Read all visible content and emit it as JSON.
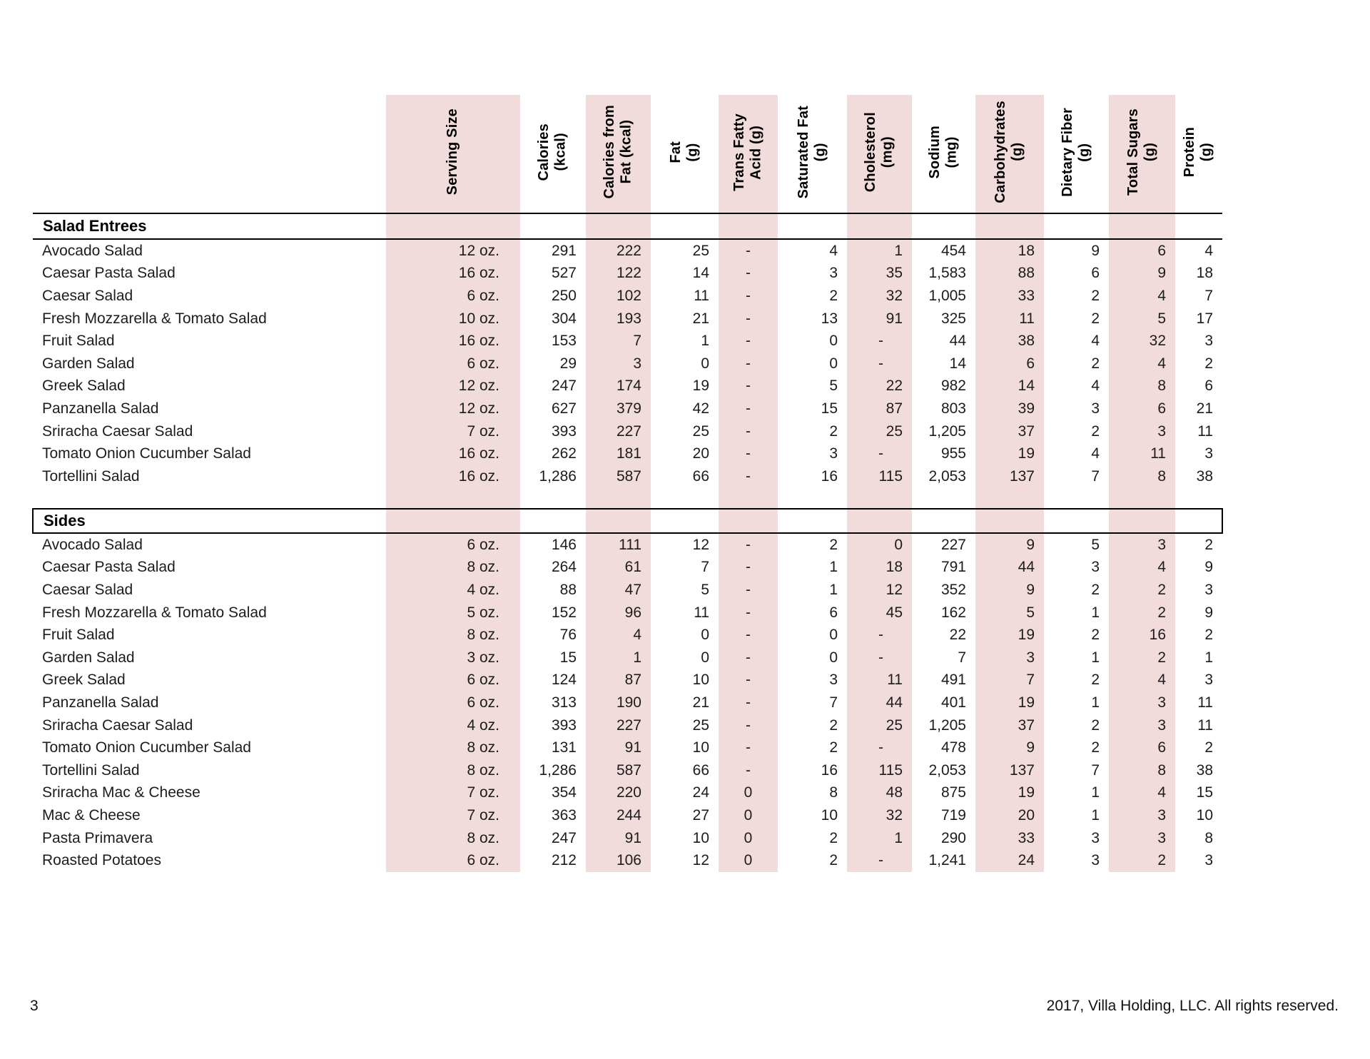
{
  "footer": {
    "page_number": "3",
    "copyright": "2017, Villa Holding, LLC. All rights reserved."
  },
  "colors": {
    "band_pink": "#f2dcdb",
    "rule_black": "#000000",
    "text": "#1c1c1c"
  },
  "table": {
    "columns": [
      {
        "key": "item",
        "label": "",
        "pink": false
      },
      {
        "key": "serving_size",
        "label": "Serving Size",
        "pink": true
      },
      {
        "key": "calories",
        "label": "Calories\n(kcal)",
        "pink": false
      },
      {
        "key": "calories_fat",
        "label": "Calories from\nFat (kcal)",
        "pink": true
      },
      {
        "key": "fat",
        "label": "Fat\n(g)",
        "pink": false
      },
      {
        "key": "trans_fat",
        "label": "Trans Fatty\nAcid (g)",
        "pink": true
      },
      {
        "key": "saturated_fat",
        "label": "Saturated Fat\n(g)",
        "pink": false
      },
      {
        "key": "cholesterol",
        "label": "Cholesterol\n(mg)",
        "pink": true
      },
      {
        "key": "sodium",
        "label": "Sodium\n(mg)",
        "pink": false
      },
      {
        "key": "carbohydrates",
        "label": "Carbohydrates\n(g)",
        "pink": true
      },
      {
        "key": "dietary_fiber",
        "label": "Dietary Fiber\n(g)",
        "pink": false
      },
      {
        "key": "total_sugars",
        "label": "Total Sugars\n(g)",
        "pink": true
      },
      {
        "key": "protein",
        "label": "Protein\n(g)",
        "pink": false
      }
    ],
    "sections": [
      {
        "title": "Salad Entrees",
        "rows": [
          [
            "Avocado Salad",
            "12 oz.",
            "291",
            "222",
            "25",
            "-",
            "4",
            "1",
            "454",
            "18",
            "9",
            "6",
            "4"
          ],
          [
            "Caesar Pasta Salad",
            "16 oz.",
            "527",
            "122",
            "14",
            "-",
            "3",
            "35",
            "1,583",
            "88",
            "6",
            "9",
            "18"
          ],
          [
            "Caesar Salad",
            "6 oz.",
            "250",
            "102",
            "11",
            "-",
            "2",
            "32",
            "1,005",
            "33",
            "2",
            "4",
            "7"
          ],
          [
            "Fresh Mozzarella & Tomato Salad",
            "10 oz.",
            "304",
            "193",
            "21",
            "-",
            "13",
            "91",
            "325",
            "11",
            "2",
            "5",
            "17"
          ],
          [
            "Fruit Salad",
            "16 oz.",
            "153",
            "7",
            "1",
            "-",
            "0",
            "-",
            "44",
            "38",
            "4",
            "32",
            "3"
          ],
          [
            "Garden Salad",
            "6 oz.",
            "29",
            "3",
            "0",
            "-",
            "0",
            "-",
            "14",
            "6",
            "2",
            "4",
            "2"
          ],
          [
            "Greek Salad",
            "12 oz.",
            "247",
            "174",
            "19",
            "-",
            "5",
            "22",
            "982",
            "14",
            "4",
            "8",
            "6"
          ],
          [
            "Panzanella Salad",
            "12 oz.",
            "627",
            "379",
            "42",
            "-",
            "15",
            "87",
            "803",
            "39",
            "3",
            "6",
            "21"
          ],
          [
            "Sriracha Caesar Salad",
            "7 oz.",
            "393",
            "227",
            "25",
            "-",
            "2",
            "25",
            "1,205",
            "37",
            "2",
            "3",
            "11"
          ],
          [
            "Tomato Onion Cucumber Salad",
            "16 oz.",
            "262",
            "181",
            "20",
            "-",
            "3",
            "-",
            "955",
            "19",
            "4",
            "11",
            "3"
          ],
          [
            "Tortellini Salad",
            "16 oz.",
            "1,286",
            "587",
            "66",
            "-",
            "16",
            "115",
            "2,053",
            "137",
            "7",
            "8",
            "38"
          ]
        ]
      },
      {
        "title": "Sides",
        "rows": [
          [
            "Avocado Salad",
            "6 oz.",
            "146",
            "111",
            "12",
            "-",
            "2",
            "0",
            "227",
            "9",
            "5",
            "3",
            "2"
          ],
          [
            "Caesar Pasta Salad",
            "8 oz.",
            "264",
            "61",
            "7",
            "-",
            "1",
            "18",
            "791",
            "44",
            "3",
            "4",
            "9"
          ],
          [
            "Caesar Salad",
            "4 oz.",
            "88",
            "47",
            "5",
            "-",
            "1",
            "12",
            "352",
            "9",
            "2",
            "2",
            "3"
          ],
          [
            "Fresh Mozzarella & Tomato Salad",
            "5 oz.",
            "152",
            "96",
            "11",
            "-",
            "6",
            "45",
            "162",
            "5",
            "1",
            "2",
            "9"
          ],
          [
            "Fruit Salad",
            "8 oz.",
            "76",
            "4",
            "0",
            "-",
            "0",
            "-",
            "22",
            "19",
            "2",
            "16",
            "2"
          ],
          [
            "Garden Salad",
            "3 oz.",
            "15",
            "1",
            "0",
            "-",
            "0",
            "-",
            "7",
            "3",
            "1",
            "2",
            "1"
          ],
          [
            "Greek Salad",
            "6 oz.",
            "124",
            "87",
            "10",
            "-",
            "3",
            "11",
            "491",
            "7",
            "2",
            "4",
            "3"
          ],
          [
            "Panzanella Salad",
            "6 oz.",
            "313",
            "190",
            "21",
            "-",
            "7",
            "44",
            "401",
            "19",
            "1",
            "3",
            "11"
          ],
          [
            "Sriracha Caesar Salad",
            "4 oz.",
            "393",
            "227",
            "25",
            "-",
            "2",
            "25",
            "1,205",
            "37",
            "2",
            "3",
            "11"
          ],
          [
            "Tomato Onion Cucumber Salad",
            "8 oz.",
            "131",
            "91",
            "10",
            "-",
            "2",
            "-",
            "478",
            "9",
            "2",
            "6",
            "2"
          ],
          [
            "Tortellini Salad",
            "8 oz.",
            "1,286",
            "587",
            "66",
            "-",
            "16",
            "115",
            "2,053",
            "137",
            "7",
            "8",
            "38"
          ],
          [
            "Sriracha Mac & Cheese",
            "7 oz.",
            "354",
            "220",
            "24",
            "0",
            "8",
            "48",
            "875",
            "19",
            "1",
            "4",
            "15"
          ],
          [
            "Mac & Cheese",
            "7 oz.",
            "363",
            "244",
            "27",
            "0",
            "10",
            "32",
            "719",
            "20",
            "1",
            "3",
            "10"
          ],
          [
            "Pasta Primavera",
            "8 oz.",
            "247",
            "91",
            "10",
            "0",
            "2",
            "1",
            "290",
            "33",
            "3",
            "3",
            "8"
          ],
          [
            "Roasted Potatoes",
            "6 oz.",
            "212",
            "106",
            "12",
            "0",
            "2",
            "-",
            "1,241",
            "24",
            "3",
            "2",
            "3"
          ]
        ]
      }
    ]
  }
}
